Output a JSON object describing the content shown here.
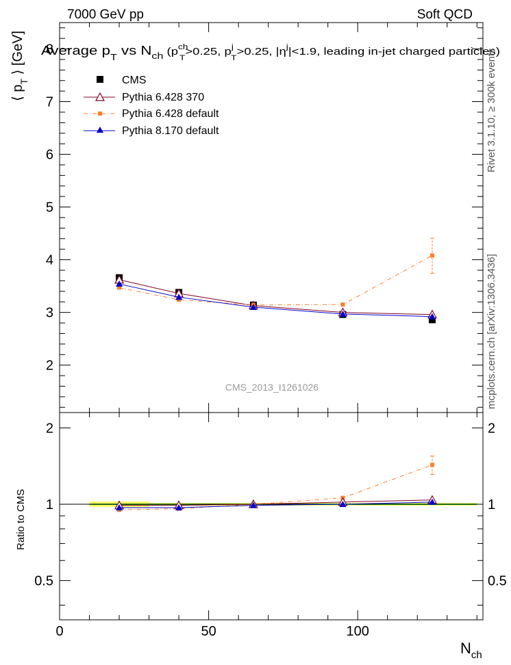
{
  "header": {
    "left": "7000 GeV pp",
    "right": "Soft QCD"
  },
  "side_labels": {
    "top": "Rivet 3.1.10, ≥ 300k events",
    "bottom": "mcplots.cern.ch [arXiv:1306.3436]"
  },
  "watermark": "CMS_2013_I1261026",
  "colors": {
    "cms": "#000000",
    "p6_370": "#800020",
    "p6_default": "#ff7f2a",
    "p8": "#0000cc",
    "band_yellow": "#ffff66",
    "band_green": "#33cc33"
  },
  "chart_data": [
    {
      "type": "line",
      "name": "main",
      "title": {
        "t1": "Average p",
        "s1": "T",
        "t2": " vs N",
        "s2": "ch",
        "t3": " (p",
        "sup3": "ch",
        "sub3": "T",
        "t4": ">0.25, p",
        "sup4": "j",
        "sub4": "T",
        "t5": ">0.25, |η",
        "sup5": "j",
        "t6": "|<1.9, leading in-jet charged particles)"
      },
      "ylabel": {
        "a": "⟨ p",
        "sub": "T",
        "b": " ⟩ [GeV]"
      },
      "ylim": [
        1.1,
        8.5
      ],
      "yticks": [
        "2",
        "3",
        "4",
        "5",
        "6",
        "7",
        "8"
      ],
      "xlim": [
        0,
        142
      ],
      "x": [
        20,
        40,
        65,
        95,
        125
      ],
      "series": [
        {
          "name": "CMS",
          "key": "cms",
          "values": [
            3.66,
            3.38,
            3.14,
            2.96,
            2.86
          ],
          "marker": "square"
        },
        {
          "name": "Pythia 6.428 370",
          "key": "p6_370",
          "values": [
            3.62,
            3.36,
            3.13,
            3.0,
            2.96
          ],
          "marker": "open-triangle"
        },
        {
          "name": "Pythia 6.428 default",
          "key": "p6_default",
          "values": [
            3.47,
            3.24,
            3.14,
            3.15,
            4.08
          ],
          "marker": "small-square",
          "error_last": [
            3.74,
            4.41
          ]
        },
        {
          "name": "Pythia 8.170 default",
          "key": "p8",
          "values": [
            3.54,
            3.29,
            3.1,
            2.97,
            2.92
          ],
          "marker": "triangle"
        }
      ],
      "legend": [
        "CMS",
        "Pythia 6.428 370",
        "Pythia 6.428 default",
        "Pythia 8.170 default"
      ]
    },
    {
      "type": "line",
      "name": "ratio",
      "ylabel": "Ratio to CMS",
      "xlabel": {
        "a": "N",
        "sub": "ch"
      },
      "ylim": [
        0.35,
        2.3
      ],
      "yticks": [
        "0.5",
        "1",
        "2"
      ],
      "xticks": [
        "0",
        "50",
        "100"
      ],
      "xlim": [
        0,
        142
      ],
      "x": [
        20,
        40,
        65,
        95,
        125
      ],
      "series": [
        {
          "name": "Pythia 6.428 370",
          "key": "p6_370",
          "values": [
            0.99,
            0.99,
            1.0,
            1.02,
            1.04
          ]
        },
        {
          "name": "Pythia 6.428 default",
          "key": "p6_default",
          "values": [
            0.95,
            0.96,
            1.0,
            1.06,
            1.43
          ],
          "error_last": [
            1.31,
            1.55
          ]
        },
        {
          "name": "Pythia 8.170 default",
          "key": "p8",
          "values": [
            0.97,
            0.97,
            0.99,
            1.0,
            1.02
          ]
        }
      ]
    }
  ]
}
